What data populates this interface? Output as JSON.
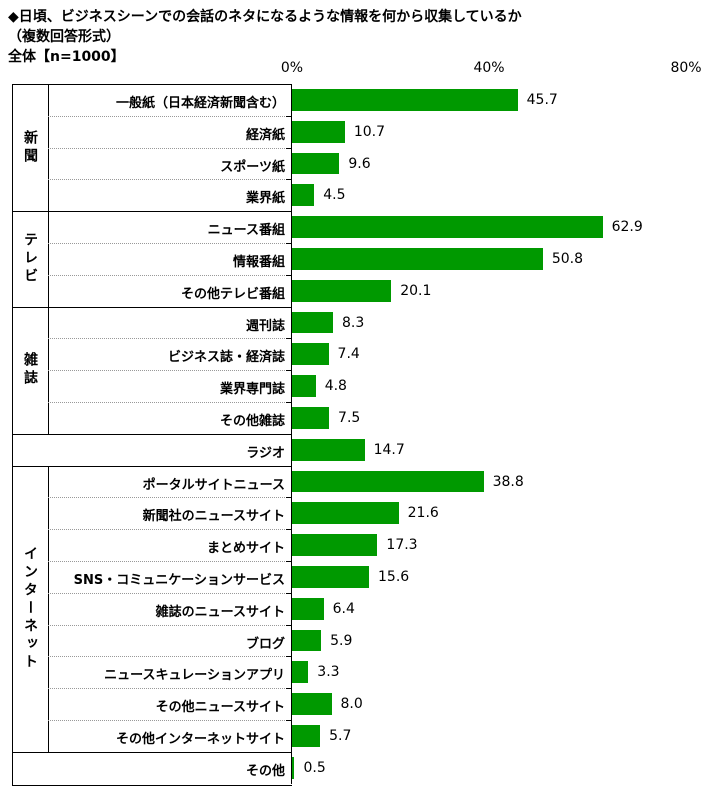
{
  "title": {
    "line1": "◆日頃、ビジネスシーンでの会話のネタになるような情報を何から収集しているか",
    "line2": "（複数回答形式）",
    "line3": "全体【n=1000】"
  },
  "chart_data": {
    "type": "bar",
    "orientation": "horizontal",
    "xlim": [
      0,
      80
    ],
    "xticks": [
      "0%",
      "40%",
      "80%"
    ],
    "color": "#009900",
    "groups": [
      {
        "name": "新聞",
        "start": 0,
        "end": 3
      },
      {
        "name": "テレビ",
        "start": 4,
        "end": 6
      },
      {
        "name": "雑誌",
        "start": 7,
        "end": 10
      },
      {
        "name": "",
        "start": 11,
        "end": 11
      },
      {
        "name": "インターネット",
        "start": 12,
        "end": 20
      },
      {
        "name": "",
        "start": 21,
        "end": 21
      }
    ],
    "categories": [
      "一般紙（日本経済新聞含む）",
      "経済紙",
      "スポーツ紙",
      "業界紙",
      "ニュース番組",
      "情報番組",
      "その他テレビ番組",
      "週刊誌",
      "ビジネス誌・経済誌",
      "業界専門誌",
      "その他雑誌",
      "ラジオ",
      "ポータルサイトニュース",
      "新聞社のニュースサイト",
      "まとめサイト",
      "SNS・コミュニケーションサービス",
      "雑誌のニュースサイト",
      "ブログ",
      "ニュースキュレーションアプリ",
      "その他ニュースサイト",
      "その他インターネットサイト",
      "その他"
    ],
    "values": [
      45.7,
      10.7,
      9.6,
      4.5,
      62.9,
      50.8,
      20.1,
      8.3,
      7.4,
      4.8,
      7.5,
      14.7,
      38.8,
      21.6,
      17.3,
      15.6,
      6.4,
      5.9,
      3.3,
      8.0,
      5.7,
      0.5
    ],
    "value_labels": [
      "45.7",
      "10.7",
      "9.6",
      "4.5",
      "62.9",
      "50.8",
      "20.1",
      "8.3",
      "7.4",
      "4.8",
      "7.5",
      "14.7",
      "38.8",
      "21.6",
      "17.3",
      "15.6",
      "6.4",
      "5.9",
      "3.3",
      "8.0",
      "5.7",
      "0.5"
    ]
  }
}
